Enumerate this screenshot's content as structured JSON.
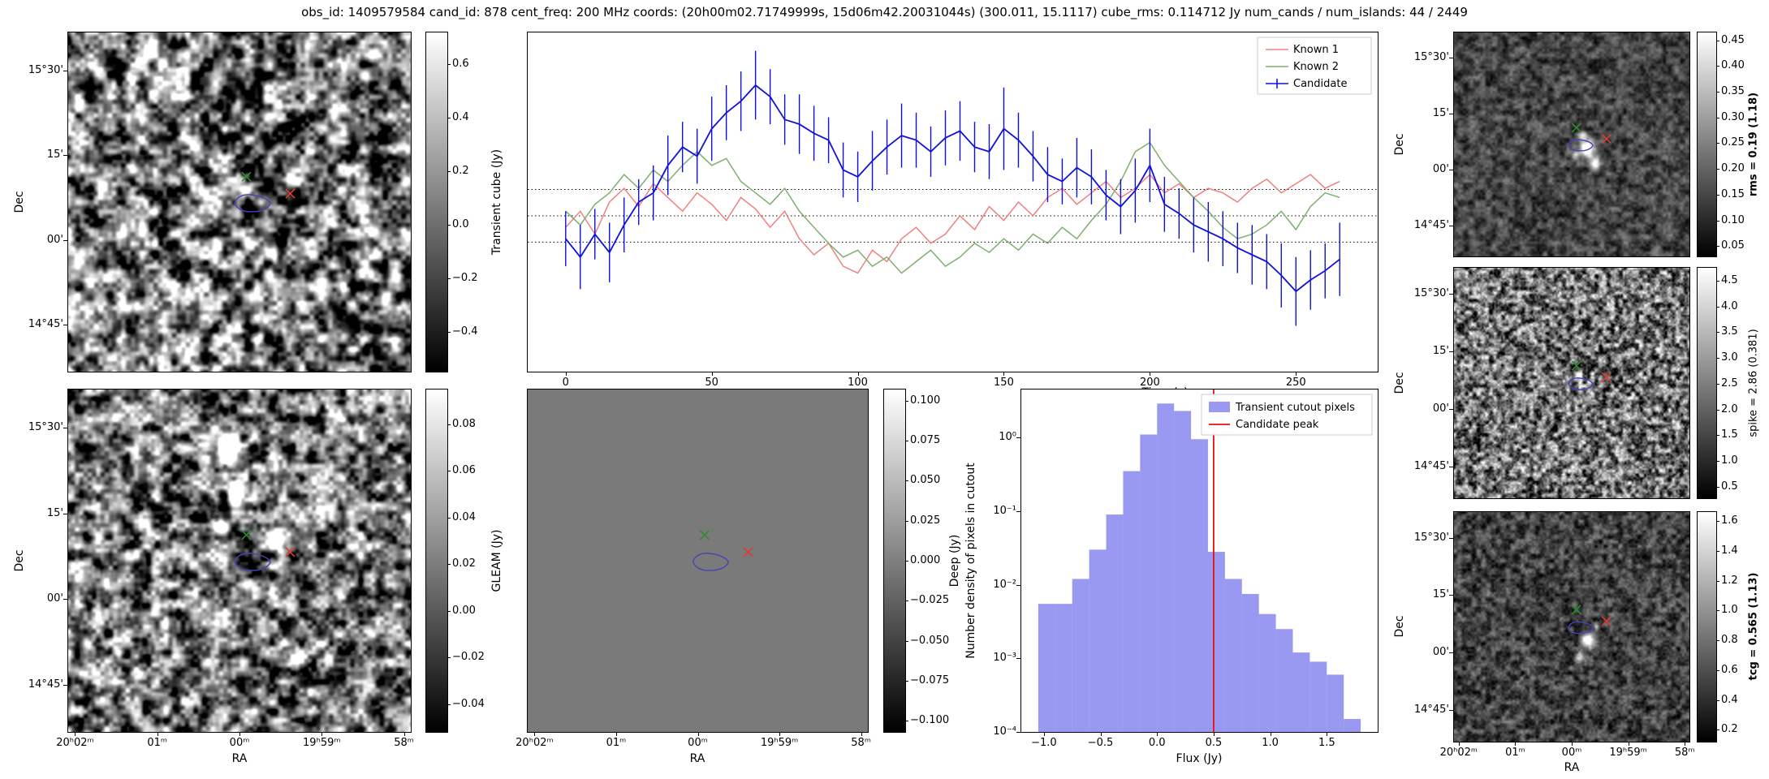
{
  "title": "obs_id: 1409579584 cand_id: 878 cent_freq: 200 MHz coords: (20h00m02.71749999s, 15d06m42.20031044s) (300.011, 15.1117) cube_rms: 0.114712 Jy num_cands / num_islands: 44 / 2449",
  "image_axes": {
    "dec_label": "Dec",
    "ra_label": "RA",
    "dec_ticks": [
      {
        "label": "15°30'",
        "f": 0.112
      },
      {
        "label": "15'",
        "f": 0.362
      },
      {
        "label": "00'",
        "f": 0.612
      },
      {
        "label": "14°45'",
        "f": 0.862
      }
    ],
    "ra_ticks": [
      {
        "label": "20ʰ02ᵐ",
        "f": 0.02
      },
      {
        "label": "01ᵐ",
        "f": 0.26
      },
      {
        "label": "00ᵐ",
        "f": 0.5
      },
      {
        "label": "19ʰ59ᵐ",
        "f": 0.74
      },
      {
        "label": "58ᵐ",
        "f": 0.98
      }
    ]
  },
  "markers": {
    "green_x": {
      "fx": 0.52,
      "fy": 0.425,
      "color": "#2f8b2f"
    },
    "red_x": {
      "fx": 0.648,
      "fy": 0.475,
      "color": "#e23b2e"
    },
    "contour": {
      "fx": 0.538,
      "fy": 0.503,
      "color": "#4444b8"
    }
  },
  "panels": {
    "transient": {
      "cbar_label": "Transient cube (Jy)",
      "cbar_min": -0.55,
      "cbar_max": 0.72,
      "cbar_ticks": [
        {
          "v": 0.6,
          "label": "0.6"
        },
        {
          "v": 0.4,
          "label": "0.4"
        },
        {
          "v": 0.2,
          "label": "0.2"
        },
        {
          "v": 0.0,
          "label": "0.0"
        },
        {
          "v": -0.2,
          "label": "−0.2"
        },
        {
          "v": -0.4,
          "label": "−0.4"
        }
      ],
      "noise": {
        "seed": 11,
        "scale": 13,
        "contrast": 0.55,
        "base": 0.5,
        "blobs": [
          [
            0.625,
            0.595,
            0.018,
            0.03,
            -0.9
          ],
          [
            0.6,
            0.655,
            0.014,
            0.018,
            0.7
          ],
          [
            0.52,
            0.46,
            0.012,
            0.014,
            0.35
          ]
        ]
      }
    },
    "gleam": {
      "cbar_label": "GLEAM (Jy)",
      "cbar_min": -0.052,
      "cbar_max": 0.095,
      "cbar_ticks": [
        {
          "v": 0.08,
          "label": "0.08"
        },
        {
          "v": 0.06,
          "label": "0.06"
        },
        {
          "v": 0.04,
          "label": "0.04"
        },
        {
          "v": 0.02,
          "label": "0.02"
        },
        {
          "v": 0.0,
          "label": "0.00"
        },
        {
          "v": -0.02,
          "label": "−0.02"
        },
        {
          "v": -0.04,
          "label": "−0.04"
        }
      ],
      "noise": {
        "seed": 7,
        "scale": 12,
        "contrast": 0.5,
        "base": 0.46,
        "blobs": [
          [
            0.465,
            0.175,
            0.02,
            0.04,
            1.1
          ],
          [
            0.49,
            0.3,
            0.018,
            0.028,
            0.95
          ],
          [
            0.445,
            0.4,
            0.014,
            0.018,
            0.65
          ],
          [
            0.615,
            0.445,
            0.018,
            0.022,
            0.85
          ],
          [
            0.29,
            0.52,
            0.013,
            0.016,
            0.5
          ],
          [
            0.68,
            0.12,
            0.012,
            0.014,
            0.45
          ],
          [
            0.255,
            0.73,
            0.012,
            0.016,
            0.5
          ],
          [
            0.75,
            0.78,
            0.012,
            0.014,
            0.4
          ],
          [
            0.32,
            0.17,
            0.011,
            0.013,
            0.35
          ]
        ]
      }
    },
    "deep": {
      "cbar_label": "Deep (Jy)",
      "cbar_min": -0.107,
      "cbar_max": 0.107,
      "cbar_ticks": [
        {
          "v": 0.1,
          "label": "0.100"
        },
        {
          "v": 0.075,
          "label": "0.075"
        },
        {
          "v": 0.05,
          "label": "0.050"
        },
        {
          "v": 0.025,
          "label": "0.025"
        },
        {
          "v": 0.0,
          "label": "0.000"
        },
        {
          "v": -0.025,
          "label": "−0.025"
        },
        {
          "v": -0.05,
          "label": "−0.050"
        },
        {
          "v": -0.075,
          "label": "−0.075"
        },
        {
          "v": -0.1,
          "label": "−0.100"
        }
      ],
      "noise": {
        "seed": 1,
        "scale": 10,
        "contrast": 0.0,
        "base": 0.48,
        "blobs": []
      }
    },
    "rms": {
      "cbar_label": "rms = 0.19 (1.18)",
      "cbar_min": 0.03,
      "cbar_max": 0.465,
      "cbar_ticks": [
        {
          "v": 0.45,
          "label": "0.45"
        },
        {
          "v": 0.4,
          "label": "0.40"
        },
        {
          "v": 0.35,
          "label": "0.35"
        },
        {
          "v": 0.3,
          "label": "0.30"
        },
        {
          "v": 0.25,
          "label": "0.25"
        },
        {
          "v": 0.2,
          "label": "0.20"
        },
        {
          "v": 0.15,
          "label": "0.15"
        },
        {
          "v": 0.1,
          "label": "0.10"
        },
        {
          "v": 0.05,
          "label": "0.05"
        }
      ],
      "noise": {
        "seed": 21,
        "scale": 7,
        "contrast": 0.16,
        "base": 0.27,
        "blobs": [
          [
            0.545,
            0.46,
            0.013,
            0.016,
            0.55
          ],
          [
            0.565,
            0.52,
            0.02,
            0.026,
            1.1
          ],
          [
            0.6,
            0.585,
            0.014,
            0.018,
            0.85
          ],
          [
            0.515,
            0.545,
            0.009,
            0.011,
            0.5
          ]
        ]
      }
    },
    "spike": {
      "cbar_label": "spike = 2.86 (0.381)",
      "cbar_min": 0.28,
      "cbar_max": 4.75,
      "cbar_ticks": [
        {
          "v": 4.5,
          "label": "4.5"
        },
        {
          "v": 4.0,
          "label": "4.0"
        },
        {
          "v": 3.5,
          "label": "3.5"
        },
        {
          "v": 3.0,
          "label": "3.0"
        },
        {
          "v": 2.5,
          "label": "2.5"
        },
        {
          "v": 2.0,
          "label": "2.0"
        },
        {
          "v": 1.5,
          "label": "1.5"
        },
        {
          "v": 1.0,
          "label": "1.0"
        },
        {
          "v": 0.5,
          "label": "0.5"
        }
      ],
      "noise": {
        "seed": 33,
        "scale": 5,
        "contrast": 0.38,
        "base": 0.44,
        "blobs": [
          [
            0.53,
            0.47,
            0.013,
            0.016,
            0.5
          ],
          [
            0.575,
            0.535,
            0.011,
            0.013,
            0.45
          ]
        ]
      }
    },
    "tcg": {
      "cbar_label": "tcg = 0.565 (1.13)",
      "cbar_min": 0.12,
      "cbar_max": 1.66,
      "cbar_ticks": [
        {
          "v": 1.6,
          "label": "1.6"
        },
        {
          "v": 1.4,
          "label": "1.4"
        },
        {
          "v": 1.2,
          "label": "1.2"
        },
        {
          "v": 1.0,
          "label": "1.0"
        },
        {
          "v": 0.8,
          "label": "0.8"
        },
        {
          "v": 0.6,
          "label": "0.6"
        },
        {
          "v": 0.4,
          "label": "0.4"
        },
        {
          "v": 0.2,
          "label": "0.2"
        }
      ],
      "noise": {
        "seed": 44,
        "scale": 6,
        "contrast": 0.18,
        "base": 0.26,
        "blobs": [
          [
            0.565,
            0.555,
            0.018,
            0.022,
            1.0
          ],
          [
            0.53,
            0.635,
            0.013,
            0.016,
            0.6
          ],
          [
            0.605,
            0.5,
            0.009,
            0.011,
            0.45
          ]
        ]
      }
    }
  },
  "chart_data": [
    {
      "id": "lightcurve",
      "type": "line",
      "xlabel": "Time (s)",
      "xlim": [
        -13,
        278
      ],
      "ylim": [
        -0.68,
        0.8
      ],
      "xticks": [
        {
          "v": 0,
          "label": "0"
        },
        {
          "v": 50,
          "label": "50"
        },
        {
          "v": 100,
          "label": "100"
        },
        {
          "v": 150,
          "label": "150"
        },
        {
          "v": 200,
          "label": "200"
        },
        {
          "v": 250,
          "label": "250"
        }
      ],
      "hlines": [
        0.1147,
        0.0,
        -0.1147
      ],
      "legend_position": "upper right",
      "x": [
        0,
        5,
        10,
        15,
        20,
        25,
        30,
        35,
        40,
        45,
        50,
        55,
        60,
        65,
        70,
        75,
        80,
        85,
        90,
        95,
        100,
        105,
        110,
        115,
        120,
        125,
        130,
        135,
        140,
        145,
        150,
        155,
        160,
        165,
        170,
        175,
        180,
        185,
        190,
        195,
        200,
        205,
        210,
        215,
        220,
        225,
        230,
        235,
        240,
        245,
        250,
        255,
        260,
        265
      ],
      "series": [
        {
          "name": "Known 1",
          "color": "#f08080",
          "values": [
            -0.05,
            0.02,
            -0.08,
            0.06,
            0.12,
            0.04,
            0.14,
            0.08,
            0.02,
            0.1,
            0.05,
            -0.02,
            0.08,
            0.03,
            -0.05,
            0.02,
            -0.1,
            -0.17,
            -0.12,
            -0.22,
            -0.25,
            -0.15,
            -0.2,
            -0.1,
            -0.05,
            -0.12,
            -0.08,
            0.0,
            -0.06,
            0.04,
            -0.02,
            0.06,
            0.0,
            0.08,
            0.12,
            0.05,
            0.1,
            0.15,
            0.08,
            0.12,
            0.18,
            0.1,
            0.14,
            0.08,
            0.12,
            0.1,
            0.06,
            0.12,
            0.16,
            0.1,
            0.14,
            0.18,
            0.12,
            0.15
          ]
        },
        {
          "name": "Known 2",
          "color": "#7fae6f",
          "values": [
            0.02,
            -0.04,
            0.05,
            0.1,
            0.18,
            0.12,
            0.2,
            0.15,
            0.22,
            0.28,
            0.22,
            0.25,
            0.15,
            0.1,
            0.05,
            0.12,
            0.02,
            -0.05,
            -0.12,
            -0.18,
            -0.15,
            -0.22,
            -0.18,
            -0.25,
            -0.2,
            -0.15,
            -0.22,
            -0.18,
            -0.12,
            -0.16,
            -0.1,
            -0.15,
            -0.08,
            -0.12,
            -0.05,
            -0.1,
            -0.02,
            0.05,
            0.15,
            0.28,
            0.32,
            0.22,
            0.15,
            0.08,
            0.02,
            -0.05,
            -0.1,
            -0.08,
            -0.04,
            0.02,
            -0.06,
            0.04,
            0.1,
            0.08
          ]
        },
        {
          "name": "Candidate",
          "color": "#1010dd",
          "values": [
            -0.1,
            -0.18,
            -0.08,
            -0.16,
            -0.04,
            0.06,
            0.1,
            0.22,
            0.3,
            0.26,
            0.38,
            0.45,
            0.5,
            0.57,
            0.52,
            0.42,
            0.4,
            0.36,
            0.33,
            0.2,
            0.17,
            0.24,
            0.3,
            0.35,
            0.33,
            0.28,
            0.34,
            0.37,
            0.3,
            0.28,
            0.38,
            0.33,
            0.26,
            0.18,
            0.15,
            0.21,
            0.17,
            0.09,
            0.04,
            0.11,
            0.22,
            0.05,
            0.01,
            -0.04,
            -0.07,
            -0.1,
            -0.14,
            -0.17,
            -0.2,
            -0.26,
            -0.33,
            -0.28,
            -0.24,
            -0.19
          ],
          "yerr": [
            0.12,
            0.14,
            0.11,
            0.13,
            0.12,
            0.1,
            0.12,
            0.13,
            0.11,
            0.12,
            0.14,
            0.12,
            0.13,
            0.15,
            0.12,
            0.11,
            0.13,
            0.12,
            0.1,
            0.12,
            0.11,
            0.13,
            0.12,
            0.14,
            0.12,
            0.11,
            0.12,
            0.13,
            0.11,
            0.12,
            0.18,
            0.12,
            0.11,
            0.12,
            0.1,
            0.13,
            0.12,
            0.11,
            0.12,
            0.14,
            0.16,
            0.12,
            0.11,
            0.12,
            0.13,
            0.12,
            0.11,
            0.13,
            0.12,
            0.14,
            0.15,
            0.13,
            0.12,
            0.16
          ]
        }
      ]
    },
    {
      "id": "flux_histogram",
      "type": "bar",
      "xlabel": "Flux (Jy)",
      "ylabel": "Number density of pixels in cutout",
      "yscale": "log",
      "xlim": [
        -1.2,
        1.95
      ],
      "ylim": [
        0.0001,
        4.5
      ],
      "xticks": [
        {
          "v": -1.0,
          "label": "−1.0"
        },
        {
          "v": -0.5,
          "label": "−0.5"
        },
        {
          "v": 0.0,
          "label": "0.0"
        },
        {
          "v": 0.5,
          "label": "0.5"
        },
        {
          "v": 1.0,
          "label": "1.0"
        },
        {
          "v": 1.5,
          "label": "1.5"
        }
      ],
      "yticks": [
        {
          "v": 1,
          "label": "10⁰"
        },
        {
          "v": 0.1,
          "label": "10⁻¹"
        },
        {
          "v": 0.01,
          "label": "10⁻²"
        },
        {
          "v": 0.001,
          "label": "10⁻³"
        },
        {
          "v": 0.0001,
          "label": "10⁻⁴"
        }
      ],
      "bin_edges": [
        -1.05,
        -0.9,
        -0.75,
        -0.6,
        -0.45,
        -0.3,
        -0.15,
        0.0,
        0.15,
        0.3,
        0.45,
        0.6,
        0.75,
        0.9,
        1.05,
        1.2,
        1.35,
        1.5,
        1.65,
        1.8
      ],
      "densities": [
        0.0055,
        0.0055,
        0.012,
        0.03,
        0.09,
        0.35,
        1.1,
        2.9,
        2.3,
        0.95,
        0.028,
        0.012,
        0.0075,
        0.004,
        0.0025,
        0.0012,
        0.0009,
        0.0006,
        0.00015
      ],
      "bar_color": "#4646e8",
      "bar_alpha": 0.55,
      "bar_label": "Transient cutout pixels",
      "vline": {
        "x": 0.5,
        "color": "#e81010",
        "label": "Candidate peak"
      },
      "legend_position": "upper right"
    }
  ]
}
